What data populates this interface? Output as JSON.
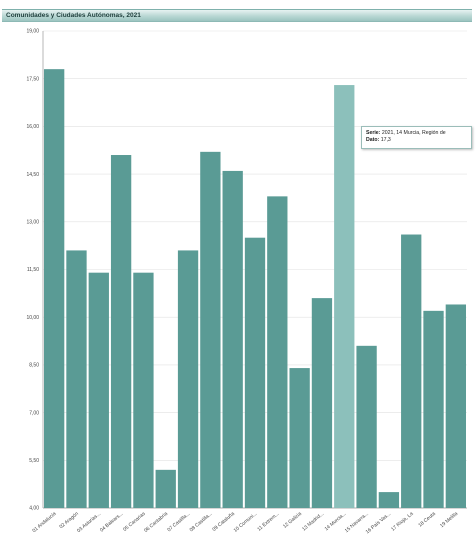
{
  "header": {
    "title": "Comunidades y Ciudades Autónomas, 2021"
  },
  "tooltip": {
    "serie_label": "Serie:",
    "serie_value": "2021, 14 Murcia, Región de",
    "dato_label": "Dato:",
    "dato_value": "17,3"
  },
  "colors": {
    "bar": "#5a9b95",
    "bar_highlight": "#8cc0bb",
    "grid": "#e2e2e2",
    "axis": "#999999"
  },
  "chart_data": {
    "type": "bar",
    "title": "Comunidades y Ciudades Autónomas, 2021",
    "xlabel": "",
    "ylabel": "",
    "ylim": [
      4.0,
      19.0
    ],
    "y_ticks": [
      "4,00",
      "5,50",
      "7,00",
      "8,50",
      "10,00",
      "11,50",
      "13,00",
      "14,50",
      "16,00",
      "17,50",
      "19,00"
    ],
    "y_tick_values": [
      4.0,
      5.5,
      7.0,
      8.5,
      10.0,
      11.5,
      13.0,
      14.5,
      16.0,
      17.5,
      19.0
    ],
    "grid": true,
    "highlighted_index": 13,
    "categories": [
      "01 Andalucía",
      "02 Aragón",
      "03 Asturias...",
      "04 Balears...",
      "05 Canarias",
      "06 Cantabria",
      "07 Castilla...",
      "08 Castilla...",
      "09 Cataluña",
      "10 Comuni...",
      "11 Extrem...",
      "12 Galicia",
      "13 Madrid...",
      "14 Murcia...",
      "15 Navarra...",
      "16 País Vas...",
      "17 Rioja, La",
      "18 Ceuta",
      "19 Melilla"
    ],
    "values": [
      17.8,
      12.1,
      11.4,
      15.1,
      11.4,
      5.2,
      12.1,
      15.2,
      14.6,
      12.5,
      13.8,
      8.4,
      10.6,
      17.3,
      9.1,
      4.5,
      12.6,
      10.2,
      10.4
    ]
  }
}
